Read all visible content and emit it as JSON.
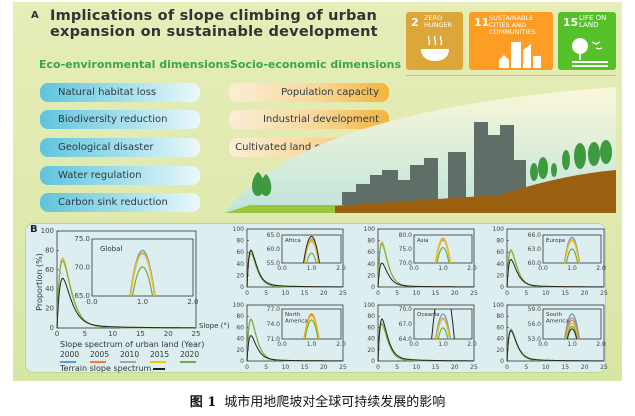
{
  "panel_a": {
    "label": "A",
    "title_line1": "Implications of slope climbing of urban",
    "title_line2": "expansion on sustainable development",
    "eco_heading": "Eco-environmental dimensions",
    "socio_heading": "Socio-economic dimensions",
    "eco_items": [
      "Natural habitat loss",
      "Biodiversity reduction",
      "Geological disaster",
      "Water regulation",
      "Carbon sink reduction"
    ],
    "socio_items": [
      "Population capacity",
      "Industrial development",
      "Cultivated land conservation"
    ],
    "sdg_tiles": [
      {
        "number": "2",
        "text": "ZERO HUNGER",
        "color": "#dda63a",
        "icon": "bowl-icon"
      },
      {
        "number": "11",
        "text": "SUSTAINABLE CITIES AND COMMUNITIES",
        "color": "#fd9d24",
        "icon": "city-icon"
      },
      {
        "number": "15",
        "text": "LIFE ON LAND",
        "color": "#56c02b",
        "icon": "tree-birds-icon"
      }
    ]
  },
  "panel_b": {
    "label": "B",
    "ylabel": "Proportion (%)",
    "xlabel": "Slope (°)",
    "legend_title": "Slope spectrum of urban land (Year)",
    "terrain_label": "Terrain slope spectrum",
    "years": [
      "2000",
      "2005",
      "2010",
      "2015",
      "2020"
    ],
    "colors": {
      "2000": "#5b9bd5",
      "2005": "#ed7d31",
      "2010": "#a5a5a5",
      "2015": "#ffc000",
      "2020": "#70ad47",
      "terrain": "#222222"
    }
  },
  "chart_data": [
    {
      "id": "global",
      "type": "line",
      "inset_title": "Global",
      "xlim": [
        0,
        25
      ],
      "ylim": [
        0,
        100
      ],
      "x_ticks": [
        "0",
        "5",
        "10",
        "15",
        "20",
        "25"
      ],
      "y_ticks": [
        "0",
        "20",
        "40",
        "60",
        "80",
        "100"
      ],
      "inset_xlim": [
        0,
        2
      ],
      "inset_ylim": [
        65,
        75
      ],
      "inset_x_ticks": [
        "0.0",
        "1.0",
        "2.0"
      ],
      "inset_y_ticks": [
        "65.0",
        "70.0",
        "75.0"
      ],
      "peak_x": 1,
      "peaks": {
        "2000": 73.0,
        "2005": 72.6,
        "2010": 72.4,
        "2015": 72.5,
        "2020": 70.1,
        "terrain": 52
      }
    },
    {
      "id": "africa",
      "type": "line",
      "inset_title": "Africa",
      "xlim": [
        0,
        25
      ],
      "ylim": [
        0,
        100
      ],
      "x_ticks": [
        "0",
        "5",
        "10",
        "15",
        "20",
        "25"
      ],
      "y_ticks": [
        "0",
        "20",
        "40",
        "60",
        "80",
        "100"
      ],
      "inset_xlim": [
        0,
        2
      ],
      "inset_ylim": [
        55,
        65
      ],
      "inset_x_ticks": [
        "0.0",
        "1.0",
        "2.0"
      ],
      "inset_y_ticks": [
        "55.0",
        "60.0",
        "65.0"
      ],
      "peak_x": 1,
      "peaks": {
        "2000": 62.8,
        "2005": 63.6,
        "2010": 63.4,
        "2015": 63.2,
        "2020": 58.5,
        "terrain": 64.5
      }
    },
    {
      "id": "asia",
      "type": "line",
      "inset_title": "Asia",
      "xlim": [
        0,
        25
      ],
      "ylim": [
        0,
        100
      ],
      "x_ticks": [
        "0",
        "5",
        "10",
        "15",
        "20",
        "25"
      ],
      "y_ticks": [
        "0",
        "20",
        "40",
        "60",
        "80",
        "100"
      ],
      "inset_xlim": [
        0,
        2
      ],
      "inset_ylim": [
        70,
        80
      ],
      "inset_x_ticks": [
        "0.0",
        "1.0",
        "2.0"
      ],
      "inset_y_ticks": [
        "70.0",
        "75.0",
        "80.0"
      ],
      "peak_x": 1,
      "peaks": {
        "2000": 78.2,
        "2005": 78.8,
        "2010": 78.4,
        "2015": 78.5,
        "2020": 75.5,
        "terrain": 42
      }
    },
    {
      "id": "europe",
      "type": "line",
      "inset_title": "Europe",
      "xlim": [
        0,
        25
      ],
      "ylim": [
        0,
        100
      ],
      "x_ticks": [
        "0",
        "5",
        "10",
        "15",
        "20",
        "25"
      ],
      "y_ticks": [
        "0",
        "20",
        "40",
        "60",
        "80",
        "100"
      ],
      "inset_xlim": [
        0,
        2
      ],
      "inset_ylim": [
        60,
        66
      ],
      "inset_x_ticks": [
        "0.0",
        "1.0",
        "2.0"
      ],
      "inset_y_ticks": [
        "60.0",
        "63.0",
        "66.0"
      ],
      "peak_x": 1,
      "peaks": {
        "2000": 65.5,
        "2005": 65.0,
        "2010": 64.8,
        "2015": 64.9,
        "2020": 63.0,
        "terrain": 48
      }
    },
    {
      "id": "north-america",
      "type": "line",
      "inset_title": "North America",
      "xlim": [
        0,
        25
      ],
      "ylim": [
        0,
        100
      ],
      "x_ticks": [
        "0",
        "5",
        "10",
        "15",
        "20",
        "25"
      ],
      "y_ticks": [
        "0",
        "20",
        "40",
        "60",
        "80",
        "100"
      ],
      "inset_xlim": [
        0,
        2
      ],
      "inset_ylim": [
        71,
        77
      ],
      "inset_x_ticks": [
        "0.0",
        "1.0",
        "2.0"
      ],
      "inset_y_ticks": [
        "71.0",
        "74.0",
        "77.0"
      ],
      "peak_x": 1,
      "peaks": {
        "2000": 75.8,
        "2005": 76.0,
        "2010": 75.7,
        "2015": 75.6,
        "2020": 74.8,
        "terrain": 46
      }
    },
    {
      "id": "oceania",
      "type": "line",
      "inset_title": "Oceania",
      "xlim": [
        0,
        25
      ],
      "ylim": [
        0,
        100
      ],
      "x_ticks": [
        "0",
        "5",
        "10",
        "15",
        "20",
        "25"
      ],
      "y_ticks": [
        "0",
        "20",
        "40",
        "60",
        "80",
        "100"
      ],
      "inset_xlim": [
        0,
        2
      ],
      "inset_ylim": [
        64,
        70
      ],
      "inset_x_ticks": [
        "0.0",
        "1.0",
        "2.0"
      ],
      "inset_y_ticks": [
        "64.0",
        "67.0",
        "70.0"
      ],
      "peak_x": 1,
      "peaks": {
        "2000": 69.0,
        "2005": 68.2,
        "2010": 68.0,
        "2015": 68.1,
        "2020": 66.2,
        "terrain": 76
      }
    },
    {
      "id": "south-america",
      "type": "line",
      "inset_title": "South America",
      "xlim": [
        0,
        25
      ],
      "ylim": [
        0,
        100
      ],
      "x_ticks": [
        "0",
        "5",
        "10",
        "15",
        "20",
        "25"
      ],
      "y_ticks": [
        "0",
        "20",
        "40",
        "60",
        "80",
        "100"
      ],
      "inset_xlim": [
        0,
        2
      ],
      "inset_ylim": [
        53,
        59
      ],
      "inset_x_ticks": [
        "0.0",
        "1.0",
        "2.0"
      ],
      "inset_y_ticks": [
        "53.0",
        "56.0",
        "59.0"
      ],
      "peak_x": 1,
      "peaks": {
        "2000": 58.0,
        "2005": 57.2,
        "2010": 56.7,
        "2015": 56.1,
        "2020": 55.5,
        "terrain": 55
      }
    }
  ],
  "caption": {
    "label": "图 1",
    "text": "城市用地爬坡对全球可持续发展的影响"
  }
}
